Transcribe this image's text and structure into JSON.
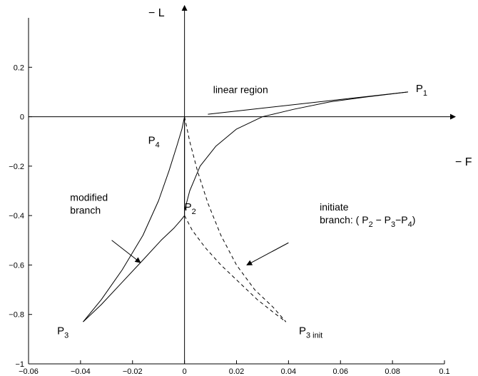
{
  "chart_data": {
    "type": "line",
    "title": "",
    "xlabel": "− F",
    "ylabel": "− L",
    "xlim": [
      -0.06,
      0.1
    ],
    "ylim": [
      -1,
      0.4
    ],
    "xticks": [
      "−0.06",
      "−0.04",
      "−0.02",
      "0",
      "0.02",
      "0.04",
      "0.06",
      "0.08",
      "0.1"
    ],
    "xtick_values": [
      -0.06,
      -0.04,
      -0.02,
      0,
      0.02,
      0.04,
      0.06,
      0.08,
      0.1
    ],
    "yticks": [
      "0.2",
      "0",
      "−0.2",
      "−0.4",
      "−0.6",
      "−0.8",
      "−1"
    ],
    "ytick_values": [
      0.2,
      0,
      -0.2,
      -0.4,
      -0.6,
      -0.8,
      -1
    ],
    "grid": false,
    "series": [
      {
        "style": "solid",
        "x": [
          0.0,
          0.002,
          0.006,
          0.012,
          0.02,
          0.03,
          0.042,
          0.056,
          0.07,
          0.086
        ],
        "y": [
          -0.38,
          -0.3,
          -0.2,
          -0.12,
          -0.05,
          0.0,
          0.03,
          0.06,
          0.08,
          0.1
        ]
      },
      {
        "style": "solid",
        "x": [
          0.0,
          -0.001,
          -0.003,
          -0.006,
          -0.01,
          -0.016,
          -0.024,
          -0.032,
          -0.039
        ],
        "y": [
          0.0,
          -0.05,
          -0.12,
          -0.22,
          -0.34,
          -0.48,
          -0.62,
          -0.74,
          -0.83
        ]
      },
      {
        "style": "solid",
        "x": [
          -0.039,
          -0.032,
          -0.024,
          -0.016,
          -0.009,
          -0.004,
          -0.0015,
          0.0,
          0.0
        ],
        "y": [
          -0.83,
          -0.76,
          -0.67,
          -0.58,
          -0.5,
          -0.45,
          -0.42,
          -0.4,
          -0.38
        ]
      },
      {
        "style": "solid",
        "x": [
          0.0,
          0.0,
          0.0,
          0.0
        ],
        "y": [
          0.0,
          -0.13,
          -0.26,
          -0.38
        ]
      },
      {
        "style": "dashed",
        "x": [
          0.0,
          0.002,
          0.005,
          0.009,
          0.014,
          0.02,
          0.027,
          0.034,
          0.039
        ],
        "y": [
          0.0,
          -0.1,
          -0.22,
          -0.35,
          -0.48,
          -0.6,
          -0.7,
          -0.77,
          -0.83
        ]
      },
      {
        "style": "dashed",
        "x": [
          0.0,
          0.003,
          0.008,
          0.014,
          0.021,
          0.028,
          0.034,
          0.039
        ],
        "y": [
          -0.4,
          -0.46,
          -0.53,
          -0.6,
          -0.67,
          -0.74,
          -0.79,
          -0.83
        ]
      },
      {
        "style": "solid",
        "x": [
          0.009,
          0.086
        ],
        "y": [
          0.01,
          0.1
        ]
      }
    ],
    "annotations": [
      {
        "kind": "text",
        "lines": [
          "linear region"
        ],
        "x": 0.011,
        "y": 0.095
      },
      {
        "kind": "text",
        "lines": [
          "modified",
          "branch"
        ],
        "x": -0.044,
        "y": -0.34
      },
      {
        "kind": "text",
        "lines": [
          "initiate",
          "branch: ( P",
          "2",
          " − P",
          "3",
          "−P",
          "4",
          ")"
        ],
        "x": 0.052,
        "y": -0.38
      },
      {
        "kind": "point",
        "main": "P",
        "sub": "1",
        "x": 0.089,
        "y": 0.1
      },
      {
        "kind": "point",
        "main": "P",
        "sub": "2",
        "x": 0.0,
        "y": -0.38
      },
      {
        "kind": "point",
        "main": "P",
        "sub": "3",
        "x": -0.049,
        "y": -0.88
      },
      {
        "kind": "point",
        "main": "P",
        "sub": "3 init",
        "x": 0.044,
        "y": -0.88
      },
      {
        "kind": "point",
        "main": "P",
        "sub": "4",
        "x": -0.014,
        "y": -0.11
      },
      {
        "kind": "arrow",
        "x1": -0.028,
        "y1": -0.5,
        "x2": -0.017,
        "y2": -0.59
      },
      {
        "kind": "arrow",
        "x1": 0.04,
        "y1": -0.51,
        "x2": 0.024,
        "y2": -0.6
      }
    ]
  }
}
